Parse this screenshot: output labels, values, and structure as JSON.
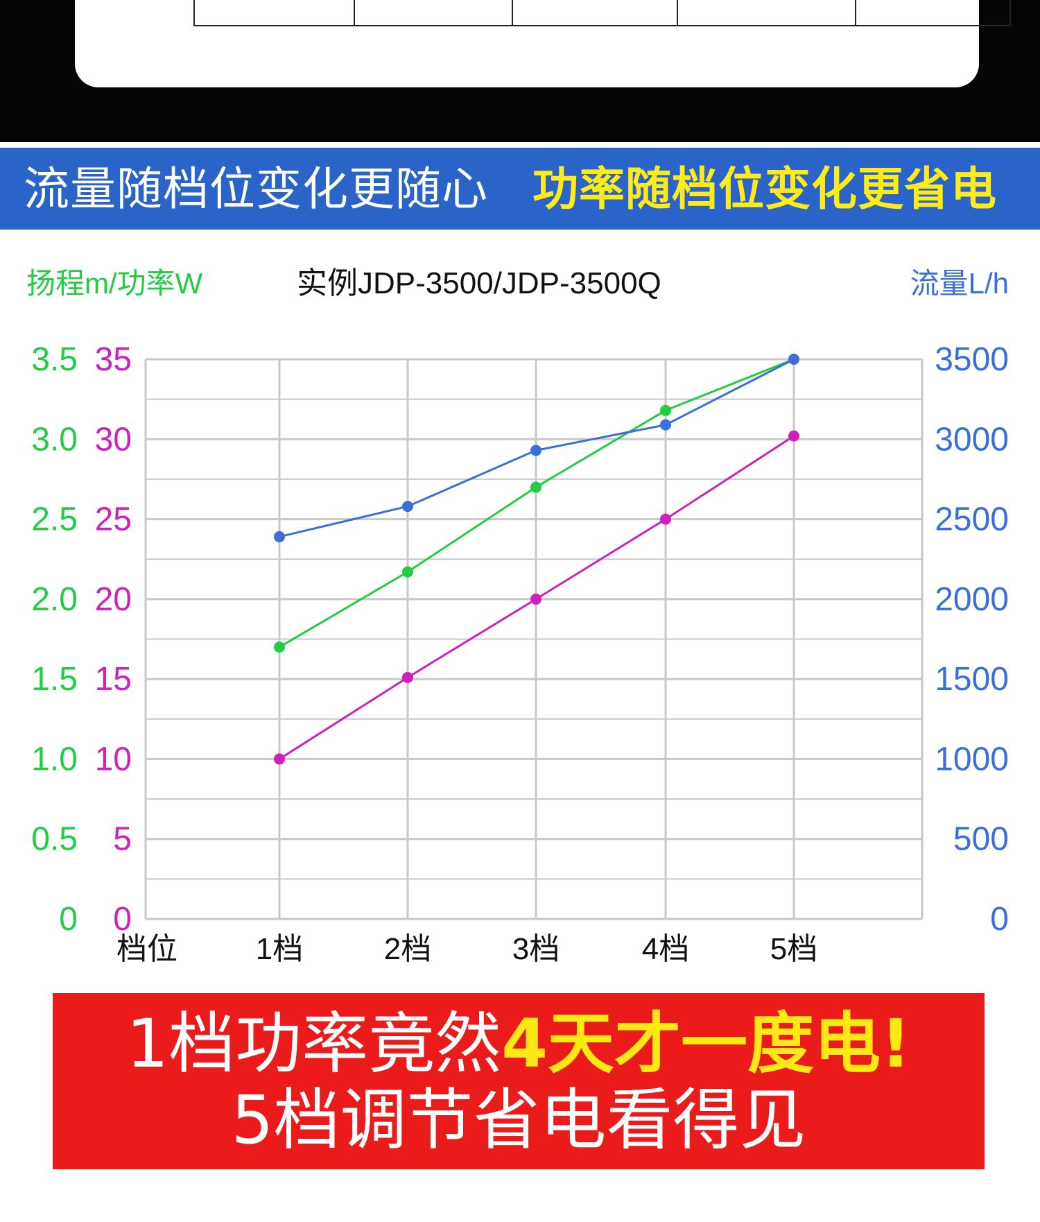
{
  "banner": {
    "left": "流量随档位变化更随心",
    "right": "功率随档位变化更省电"
  },
  "footer": {
    "line1_prefix": "1档功率竟然",
    "line1_highlight": "4天才一度电!",
    "line2": "5档调节省电看得见"
  },
  "colors": {
    "head": "#22cc44",
    "power": "#cc22bb",
    "flow": "#3a6fd8",
    "banner_bg": "#2b64c8",
    "banner_highlight": "#ffeb16",
    "footer_bg": "#ec1b1b"
  },
  "chart_data": {
    "type": "line",
    "title": "实例JDP-3500/JDP-3500Q",
    "left_axis_label": "扬程m/功率W",
    "right_axis_label": "流量L/h",
    "x_axis_label": "档位",
    "categories": [
      "1档",
      "2档",
      "3档",
      "4档",
      "5档"
    ],
    "head_ticks": [
      "3.5",
      "3.0",
      "2.5",
      "2.0",
      "1.5",
      "1.0",
      "0.5",
      "0"
    ],
    "power_ticks": [
      "35",
      "30",
      "25",
      "20",
      "15",
      "10",
      "5",
      "0"
    ],
    "flow_ticks": [
      "3500",
      "3000",
      "2500",
      "2000",
      "1500",
      "1000",
      "500",
      "0"
    ],
    "ylim_left_head": [
      0,
      3.5
    ],
    "ylim_left_power": [
      0,
      35
    ],
    "ylim_right_flow": [
      0,
      3500
    ],
    "grid": true,
    "series": [
      {
        "key": "head",
        "axis": "head",
        "color": "#22cc44",
        "values": [
          1.7,
          2.17,
          2.7,
          3.18,
          3.5
        ]
      },
      {
        "key": "power",
        "axis": "power",
        "color": "#cc22bb",
        "values": [
          10,
          15.1,
          20,
          25,
          30.2
        ]
      },
      {
        "key": "flow",
        "axis": "flow",
        "color": "#3a6fd8",
        "values": [
          2390,
          2580,
          2930,
          3090,
          3500
        ]
      }
    ]
  }
}
